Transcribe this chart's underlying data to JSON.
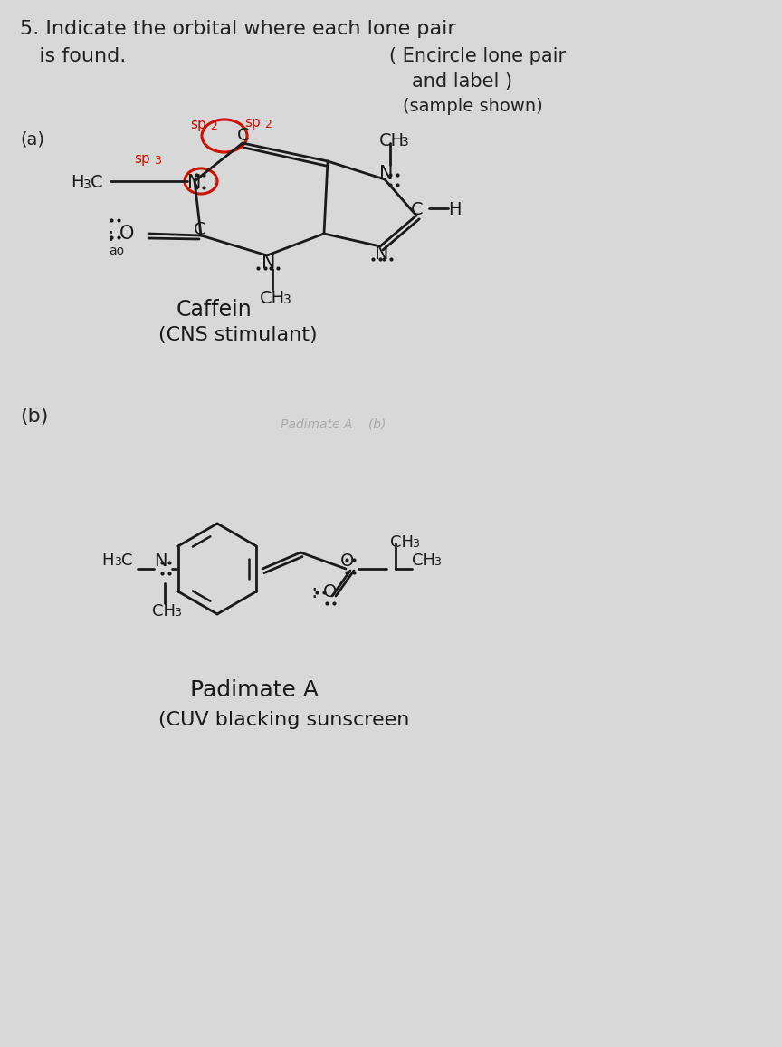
{
  "page_color": "#d8d8d8",
  "text_color": "#222222",
  "red_color": "#cc1100",
  "ink_color": "#1a1a1a",
  "title1": "5. Indicate the orbital where each lone pair",
  "title2": "   is found.",
  "title3": "( Encircle lone pair",
  "title4": "and label )",
  "title5": "(sample shown)",
  "label_a": "(a)",
  "label_b": "(b)",
  "caffein": "Caffein",
  "cns": "(CNS stimulant)",
  "padimate": "Padimate A",
  "cuv": "(CUV blacking sunscreen"
}
